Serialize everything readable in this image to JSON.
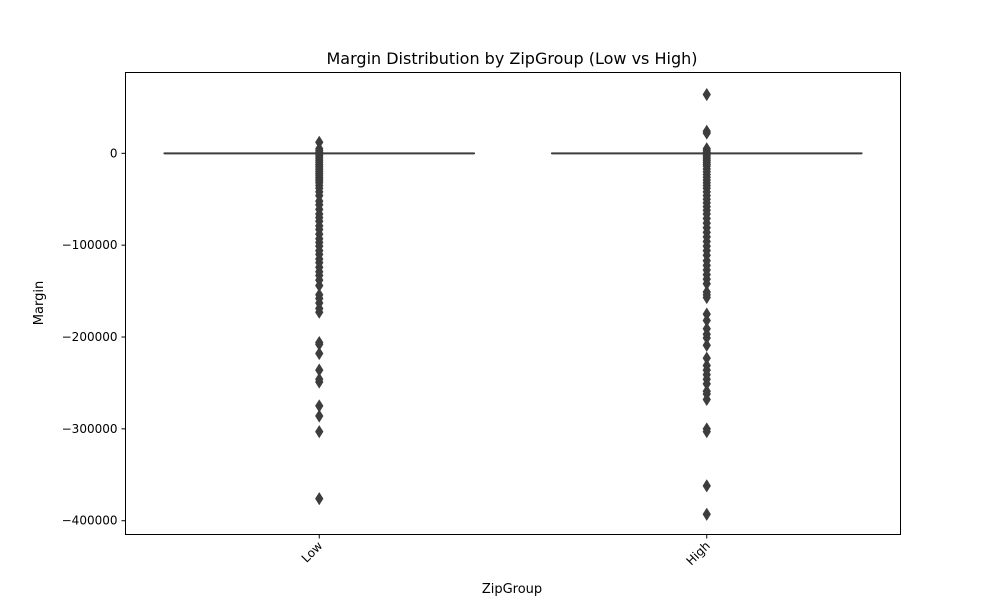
{
  "chart_data": {
    "type": "boxplot",
    "title": "Margin Distribution by ZipGroup (Low vs High)",
    "xlabel": "ZipGroup",
    "ylabel": "Margin",
    "categories": [
      "Low",
      "High"
    ],
    "ylim": [
      -415000,
      88000
    ],
    "yticks": [
      0,
      -100000,
      -200000,
      -300000,
      -400000
    ],
    "ytick_labels": [
      "0",
      "−100000",
      "−200000",
      "−300000",
      "−400000"
    ],
    "grid": false,
    "colors": {
      "mark": "#3d3d3d",
      "axis": "#000000"
    },
    "boxes": [
      {
        "category": "Low",
        "q1": 0,
        "median": 0,
        "q3": 0,
        "whisker_low": 0,
        "whisker_high": 0,
        "outliers": [
          12000,
          5000,
          3000,
          1000,
          -2000,
          -4000,
          -6000,
          -8000,
          -10000,
          -12000,
          -14000,
          -16000,
          -18000,
          -20000,
          -22000,
          -24000,
          -26000,
          -28000,
          -30000,
          -32000,
          -35000,
          -38000,
          -42000,
          -46000,
          -52000,
          -56000,
          -61000,
          -66000,
          -70000,
          -74000,
          -79000,
          -83000,
          -88000,
          -93000,
          -97000,
          -101000,
          -106000,
          -110000,
          -115000,
          -119000,
          -124000,
          -129000,
          -133000,
          -138000,
          -144000,
          -154000,
          -158000,
          -163000,
          -169000,
          -173000,
          -206000,
          -208000,
          -218000,
          -236000,
          -246000,
          -249000,
          -275000,
          -286000,
          -303000,
          -376000
        ]
      },
      {
        "category": "High",
        "q1": 0,
        "median": 0,
        "q3": 0,
        "whisker_low": 0,
        "whisker_high": 0,
        "outliers": [
          64000,
          24000,
          22000,
          5000,
          3000,
          1000,
          -2000,
          -4000,
          -6000,
          -8000,
          -10000,
          -12000,
          -14000,
          -17000,
          -20000,
          -23000,
          -26000,
          -29000,
          -32000,
          -35000,
          -38000,
          -42000,
          -46000,
          -50000,
          -54000,
          -58000,
          -62000,
          -66000,
          -71000,
          -76000,
          -81000,
          -86000,
          -91000,
          -96000,
          -101000,
          -106000,
          -111000,
          -117000,
          -122000,
          -127000,
          -132000,
          -137000,
          -142000,
          -151000,
          -154000,
          -157000,
          -175000,
          -182000,
          -191000,
          -197000,
          -201000,
          -209000,
          -223000,
          -231000,
          -236000,
          -241000,
          -246000,
          -251000,
          -259000,
          -262000,
          -268000,
          -300000,
          -303000,
          -362000,
          -393000
        ]
      }
    ]
  }
}
